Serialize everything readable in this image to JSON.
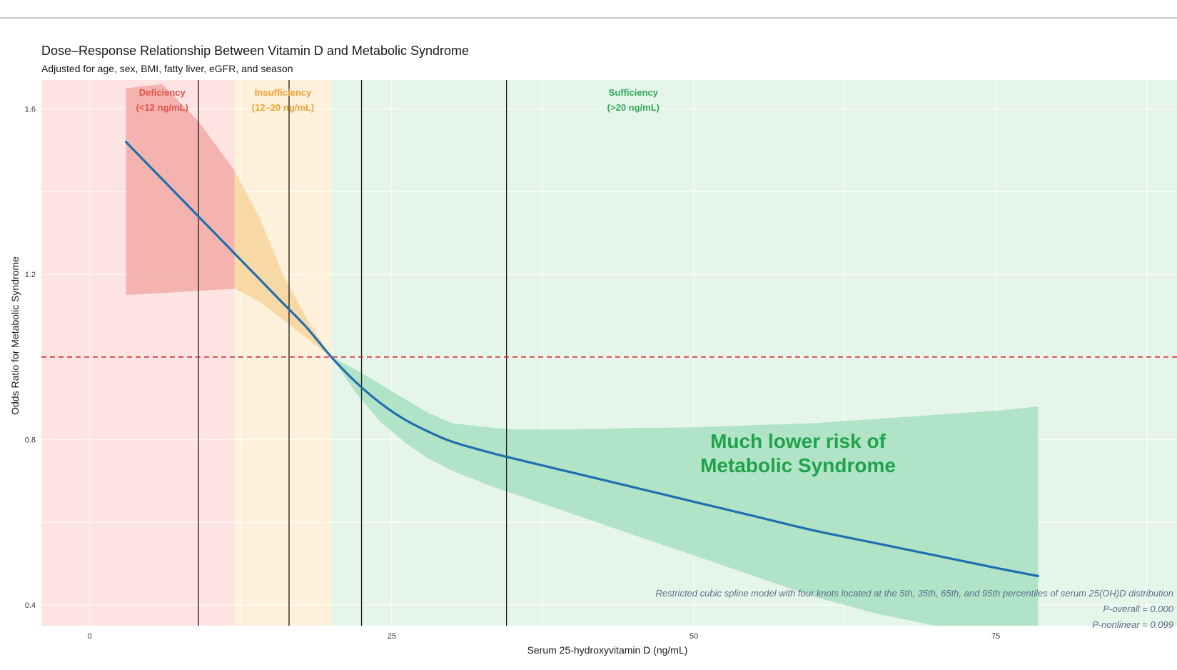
{
  "chart_data": {
    "type": "line",
    "title": "Dose–Response Relationship Between Vitamin D and Metabolic Syndrome",
    "subtitle": "Adjusted for age, sex, BMI, fatty liver, eGFR, and season",
    "xlabel": "Serum 25-hydroxyvitamin D (ng/mL)",
    "ylabel": "Odds Ratio for Metabolic Syndrome",
    "xlim": [
      -4,
      90
    ],
    "ylim": [
      0.35,
      1.67
    ],
    "x_ticks": [
      0,
      25,
      50,
      75
    ],
    "y_ticks": [
      0.4,
      0.8,
      1.2,
      1.6
    ],
    "grid": true,
    "reference_line": {
      "y": 1.0,
      "style": "dashed",
      "color": "#d62728"
    },
    "knot_lines_x": [
      9,
      16.5,
      22.5,
      34.5
    ],
    "zones": [
      {
        "label_line1": "Deficiency",
        "label_line2": "(<12 ng/mL)",
        "from": -4,
        "to": 12,
        "fill": "#fde3e1",
        "text_color": "#e0524a"
      },
      {
        "label_line1": "Insufficiency",
        "label_line2": "(12–20 ng/mL)",
        "from": 12,
        "to": 20,
        "fill": "#fdf1dc",
        "text_color": "#f0a030"
      },
      {
        "label_line1": "Sufficiency",
        "label_line2": "(>20 ng/mL)",
        "from": 20,
        "to": 90,
        "fill": "#e6f5ea",
        "text_color": "#2ea85a"
      }
    ],
    "series": [
      {
        "x": [
          3,
          6,
          9,
          12,
          14,
          16,
          18,
          20,
          22,
          24,
          26,
          28,
          30,
          33,
          35,
          40,
          45,
          50,
          55,
          60,
          65,
          70,
          75,
          78.5
        ],
        "y": [
          1.52,
          1.43,
          1.34,
          1.25,
          1.19,
          1.13,
          1.07,
          1.0,
          0.94,
          0.89,
          0.85,
          0.82,
          0.795,
          0.77,
          0.755,
          0.72,
          0.685,
          0.65,
          0.615,
          0.58,
          0.55,
          0.52,
          0.49,
          0.47
        ],
        "lower": [
          1.15,
          1.155,
          1.16,
          1.165,
          1.135,
          1.09,
          1.045,
          1.0,
          0.915,
          0.845,
          0.795,
          0.755,
          0.725,
          0.69,
          0.67,
          0.62,
          0.57,
          0.52,
          0.47,
          0.42,
          0.38,
          0.35,
          0.35,
          0.35
        ],
        "upper": [
          1.65,
          1.66,
          1.57,
          1.45,
          1.34,
          1.2,
          1.09,
          1.0,
          0.97,
          0.935,
          0.9,
          0.865,
          0.84,
          0.83,
          0.825,
          0.825,
          0.828,
          0.83,
          0.835,
          0.84,
          0.85,
          0.86,
          0.87,
          0.88
        ],
        "color": "#1f6fb0",
        "band_colors": {
          "deficiency": "#f2aaa6",
          "insufficiency": "#f7d49a",
          "sufficiency": "#a7dfbf"
        }
      }
    ],
    "annotation": {
      "line1": "Much lower risk of",
      "line2": "Metabolic Syndrome",
      "x": 56.5,
      "y": 0.73
    },
    "notes": [
      "Restricted cubic spline model with four knots located at the 5th, 35th, 65th, and 95th percentiles of serum 25(OH)D distribution",
      "P-overall = 0.000",
      "P-nonlinear = 0.099"
    ]
  }
}
